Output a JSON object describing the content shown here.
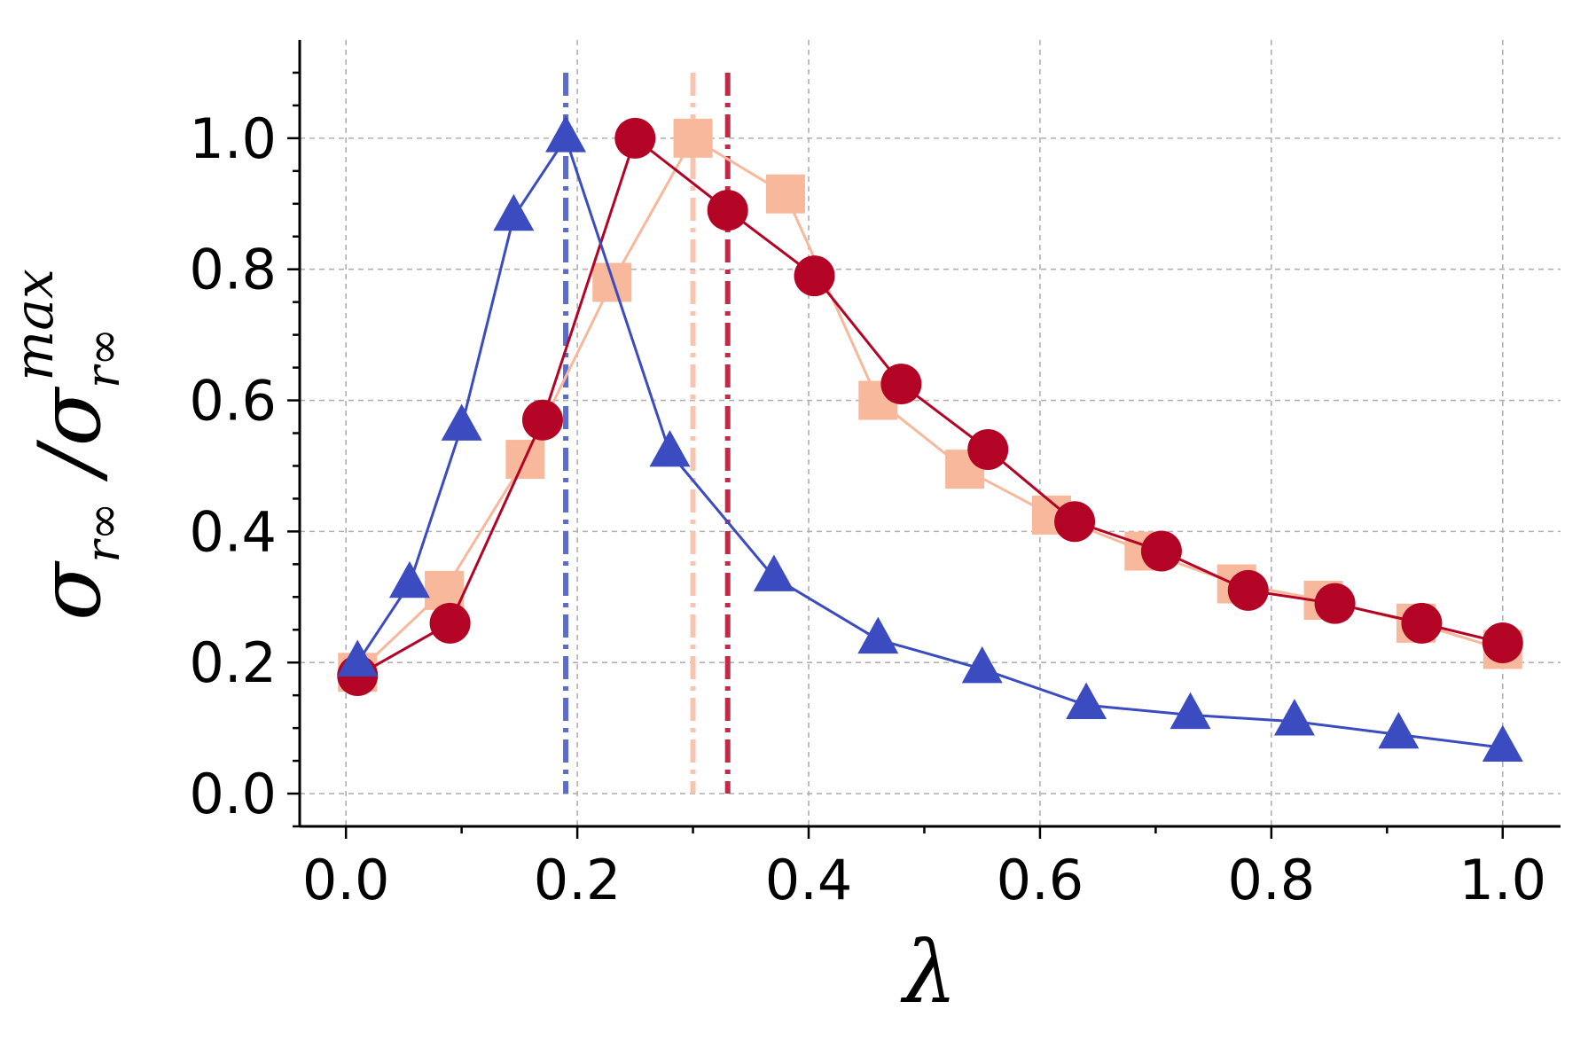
{
  "chart_data": {
    "type": "line",
    "xlabel": "λ",
    "ylabel": {
      "main": "σ",
      "sub": "r∞",
      "sep": " /",
      "den_main": "σ",
      "den_sub": "r∞",
      "den_sup": "max"
    },
    "xlim": [
      -0.04,
      1.05
    ],
    "ylim": [
      -0.05,
      1.15
    ],
    "xticks": [
      0.0,
      0.2,
      0.4,
      0.6,
      0.8,
      1.0
    ],
    "xtick_labels": [
      "0.0",
      "0.2",
      "0.4",
      "0.6",
      "0.8",
      "1.0"
    ],
    "yticks": [
      0.0,
      0.2,
      0.4,
      0.6,
      0.8,
      1.0
    ],
    "ytick_labels": [
      "0.0",
      "0.2",
      "0.4",
      "0.6",
      "0.8",
      "1.0"
    ],
    "grid": true,
    "series": [
      {
        "marker": "square",
        "color": "#f7b89c",
        "x": [
          0.01,
          0.085,
          0.155,
          0.23,
          0.3,
          0.38,
          0.46,
          0.535,
          0.61,
          0.69,
          0.77,
          0.845,
          0.925,
          1.0
        ],
        "y": [
          0.185,
          0.31,
          0.51,
          0.78,
          1.0,
          0.915,
          0.6,
          0.495,
          0.425,
          0.37,
          0.32,
          0.295,
          0.26,
          0.22
        ]
      },
      {
        "marker": "circle",
        "color": "#b40426",
        "x": [
          0.01,
          0.09,
          0.17,
          0.25,
          0.33,
          0.405,
          0.48,
          0.555,
          0.63,
          0.705,
          0.78,
          0.855,
          0.93,
          1.0
        ],
        "y": [
          0.18,
          0.26,
          0.57,
          1.0,
          0.89,
          0.79,
          0.625,
          0.525,
          0.415,
          0.37,
          0.31,
          0.29,
          0.26,
          0.23
        ]
      },
      {
        "marker": "triangle",
        "color": "#3b4cc0",
        "x": [
          0.01,
          0.055,
          0.1,
          0.145,
          0.19,
          0.28,
          0.37,
          0.46,
          0.55,
          0.64,
          0.73,
          0.82,
          0.91,
          1.0
        ],
        "y": [
          0.2,
          0.32,
          0.56,
          0.88,
          1.0,
          0.52,
          0.33,
          0.235,
          0.19,
          0.135,
          0.12,
          0.11,
          0.09,
          0.07
        ]
      }
    ],
    "vlines": [
      {
        "x": 0.19,
        "color": "#5b6ccf",
        "y_top": 1.1
      },
      {
        "x": 0.3,
        "color": "#f7c5ad",
        "y_top": 1.1
      },
      {
        "x": 0.33,
        "color": "#c02b45",
        "y_top": 1.1
      }
    ]
  }
}
